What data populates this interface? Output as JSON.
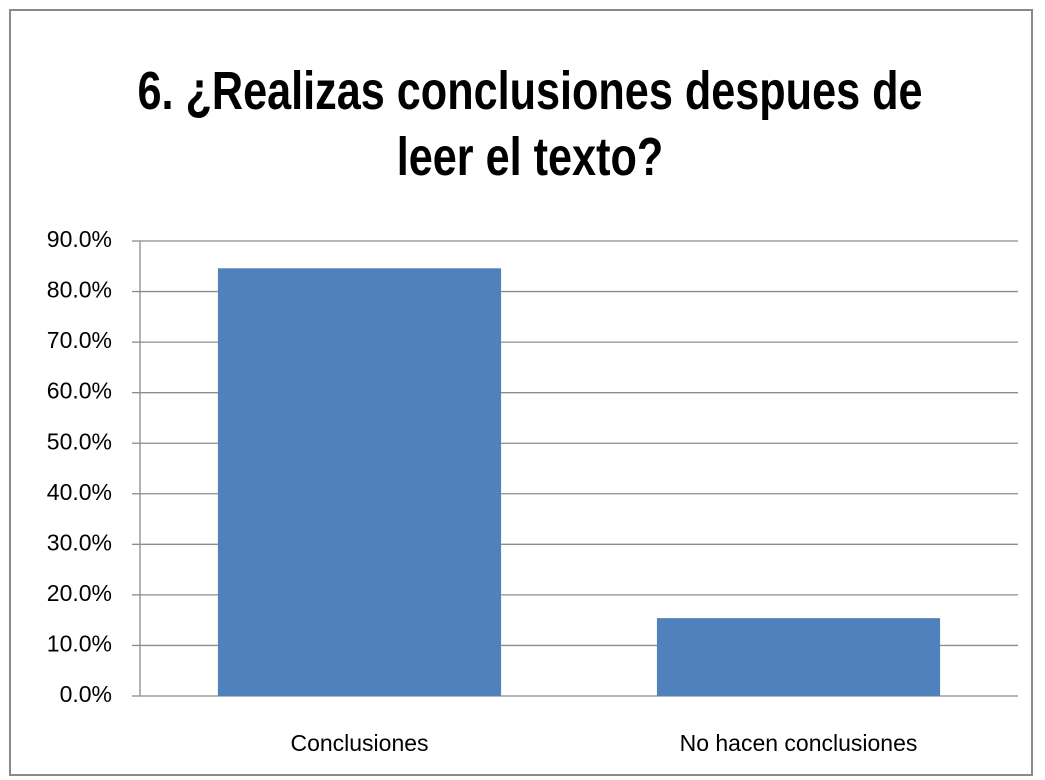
{
  "chart_data": {
    "type": "bar",
    "title": "6. ¿Realizas conclusiones despues de leer el texto?",
    "categories": [
      "Conclusiones",
      "No hacen conclusiones"
    ],
    "values": [
      84.6,
      15.4
    ],
    "color": "#4f81bd",
    "ylim": [
      0,
      90
    ],
    "yticks": [
      {
        "value": 0,
        "label": "0.0%"
      },
      {
        "value": 10,
        "label": "10.0%"
      },
      {
        "value": 20,
        "label": "20.0%"
      },
      {
        "value": 30,
        "label": "30.0%"
      },
      {
        "value": 40,
        "label": "40.0%"
      },
      {
        "value": 50,
        "label": "50.0%"
      },
      {
        "value": 60,
        "label": "60.0%"
      },
      {
        "value": 70,
        "label": "70.0%"
      },
      {
        "value": 80,
        "label": "80.0%"
      },
      {
        "value": 90,
        "label": "90.0%"
      }
    ],
    "grid": true
  }
}
